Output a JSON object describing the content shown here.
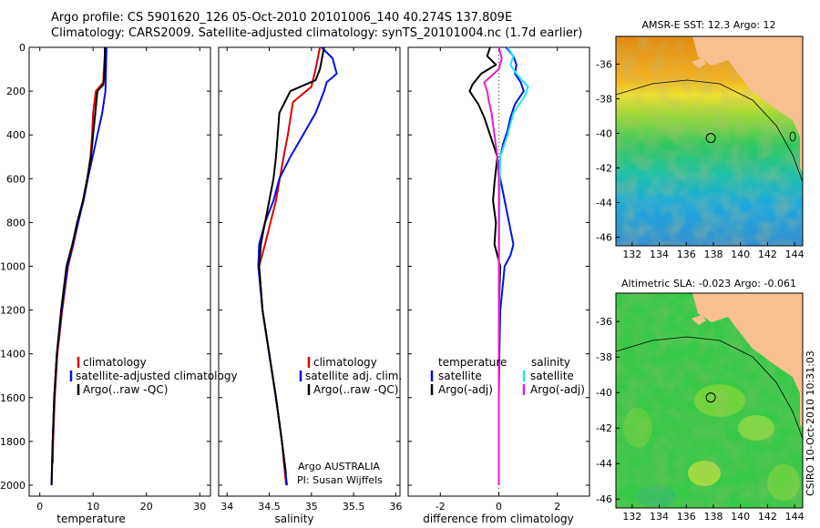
{
  "header": {
    "line1": "Argo profile: CS 5901620_126 05-Oct-2010 20101006_140 40.274S 137.809E",
    "line2": "Climatology: CARS2009. Satellite-adjusted climatology: synTS_20101004.nc (1.7d earlier)"
  },
  "colors": {
    "red": "#e00000",
    "blue": "#0010e8",
    "black": "#000000",
    "cyan": "#22e6ee",
    "magenta": "#e020d0",
    "land": "#f8c090"
  },
  "chart_data": [
    {
      "type": "line",
      "panel": "temperature",
      "xlabel": "temperature",
      "xlim": [
        -2,
        32
      ],
      "xticks": [
        0,
        10,
        20,
        30
      ],
      "ylim": [
        2050,
        0
      ],
      "yticks": [
        0,
        200,
        400,
        600,
        800,
        1000,
        1200,
        1400,
        1600,
        1800,
        2000
      ],
      "legend": [
        "climatology",
        "satellite-adjusted climatology",
        "Argo(..raw -QC)"
      ],
      "series": [
        {
          "name": "climatology",
          "color": "red",
          "depth": [
            0,
            100,
            160,
            200,
            300,
            400,
            500,
            600,
            700,
            800,
            900,
            1000,
            1200,
            1400,
            1600,
            1800,
            1900
          ],
          "values": [
            12.3,
            12.0,
            11.9,
            10.5,
            10.0,
            9.8,
            9.5,
            8.9,
            8.1,
            7.2,
            6.3,
            5.3,
            4.2,
            3.3,
            2.8,
            2.5,
            2.4
          ]
        },
        {
          "name": "satellite-adjusted climatology",
          "color": "blue",
          "depth": [
            0,
            100,
            200,
            300,
            400,
            500,
            600,
            700,
            800,
            900,
            1000,
            1200,
            1400,
            1600,
            1800,
            2000
          ],
          "values": [
            12.5,
            12.4,
            12.3,
            11.7,
            10.8,
            9.9,
            9.0,
            8.2,
            7.2,
            6.2,
            5.2,
            4.1,
            3.2,
            2.7,
            2.4,
            2.2
          ]
        },
        {
          "name": "Argo(..raw -QC)",
          "color": "black",
          "depth": [
            0,
            100,
            170,
            200,
            300,
            400,
            500,
            600,
            700,
            800,
            900,
            1000,
            1200,
            1400,
            1600,
            1800,
            2000
          ],
          "values": [
            12.2,
            12.2,
            11.9,
            10.8,
            10.4,
            10.0,
            9.6,
            8.9,
            8.1,
            7.0,
            6.1,
            5.0,
            4.0,
            3.2,
            2.7,
            2.4,
            2.2
          ]
        }
      ]
    },
    {
      "type": "line",
      "panel": "salinity",
      "xlabel": "salinity",
      "xlim": [
        33.9,
        36.05
      ],
      "xticks": [
        34,
        34.5,
        35,
        35.5,
        36
      ],
      "ylim": [
        2050,
        0
      ],
      "legend": [
        "climatology",
        "satellite adj. clim.",
        "Argo(..raw -QC)"
      ],
      "annotations": [
        "Argo AUSTRALIA",
        "PI: Susan Wijffels"
      ],
      "series": [
        {
          "name": "climatology",
          "color": "red",
          "depth": [
            0,
            100,
            180,
            250,
            400,
            500,
            700,
            900,
            1000,
            1200,
            1400,
            1600,
            1800,
            2000
          ],
          "values": [
            35.1,
            35.05,
            35.0,
            34.78,
            34.72,
            34.67,
            34.58,
            34.45,
            34.38,
            34.42,
            34.5,
            34.58,
            34.65,
            34.7
          ]
        },
        {
          "name": "satellite adj. clim.",
          "color": "blue",
          "depth": [
            0,
            50,
            120,
            160,
            200,
            300,
            400,
            500,
            600,
            700,
            800,
            900,
            1000,
            1200,
            1400,
            1600,
            1800,
            2000
          ],
          "values": [
            35.12,
            35.25,
            35.3,
            35.18,
            35.15,
            35.05,
            34.9,
            34.75,
            34.62,
            34.55,
            34.45,
            34.38,
            34.37,
            34.42,
            34.5,
            34.58,
            34.65,
            34.71
          ]
        },
        {
          "name": "Argo(..raw -QC)",
          "color": "black",
          "depth": [
            0,
            100,
            150,
            200,
            300,
            400,
            500,
            600,
            700,
            800,
            900,
            1000,
            1200,
            1400,
            1600,
            1800,
            1950
          ],
          "values": [
            35.15,
            35.1,
            35.05,
            34.75,
            34.62,
            34.6,
            34.58,
            34.55,
            34.5,
            34.45,
            34.4,
            34.38,
            34.42,
            34.5,
            34.58,
            34.65,
            34.7
          ]
        }
      ]
    },
    {
      "type": "line",
      "panel": "difference",
      "xlabel": "difference from climatology",
      "xlim": [
        -3.1,
        3.1
      ],
      "xticks": [
        -2,
        0,
        2
      ],
      "ylim": [
        2050,
        0
      ],
      "legend_left_title": "temperature",
      "legend_right_title": "salinity",
      "legend": [
        "satellite",
        "Argo(-adj)",
        "satellite",
        "Argo(-adj)"
      ],
      "series": [
        {
          "name": "satellite",
          "group": "temperature",
          "color": "blue",
          "depth": [
            0,
            40,
            80,
            120,
            160,
            200,
            260,
            320,
            380,
            440,
            500,
            560,
            600,
            700,
            800,
            900,
            950,
            1000,
            1200,
            1400,
            1600,
            1800,
            2000
          ],
          "values": [
            0.25,
            0.5,
            0.6,
            0.55,
            0.75,
            0.85,
            0.55,
            0.4,
            0.3,
            0.15,
            0.05,
            0.0,
            0.05,
            0.2,
            0.35,
            0.5,
            0.4,
            0.2,
            0.05,
            0.02,
            0.0,
            0.0,
            0.0
          ]
        },
        {
          "name": "Argo(-adj)",
          "group": "temperature",
          "color": "black",
          "depth": [
            0,
            40,
            80,
            120,
            170,
            200,
            260,
            320,
            380,
            440,
            500,
            560,
            620,
            700,
            800,
            900,
            1000,
            1200,
            1400,
            1600,
            1800,
            2000
          ],
          "values": [
            -0.3,
            -0.4,
            -0.1,
            -0.6,
            -0.9,
            -1.0,
            -0.7,
            -0.5,
            -0.35,
            -0.2,
            -0.05,
            -0.1,
            -0.15,
            -0.2,
            -0.1,
            -0.15,
            0.05,
            0.0,
            0.0,
            0.0,
            0.0,
            0.0
          ]
        },
        {
          "name": "satellite",
          "group": "salinity",
          "color": "cyan",
          "depth": [
            0,
            40,
            80,
            120,
            150,
            180,
            220,
            300,
            400,
            500,
            600,
            800,
            1000,
            1500,
            2000
          ],
          "values": [
            0.3,
            0.5,
            0.4,
            0.6,
            0.8,
            1.0,
            0.9,
            0.5,
            0.3,
            0.05,
            0.03,
            0.02,
            0.01,
            0.0,
            0.0
          ]
        },
        {
          "name": "Argo(-adj)",
          "group": "salinity",
          "color": "magenta",
          "depth": [
            0,
            50,
            100,
            160,
            200,
            240,
            300,
            400,
            500,
            600,
            800,
            1000,
            1500,
            2000
          ],
          "values": [
            0.0,
            0.1,
            0.0,
            -0.5,
            -0.4,
            -0.35,
            -0.25,
            -0.15,
            -0.05,
            0.0,
            0.0,
            0.0,
            0.0,
            0.0
          ]
        }
      ]
    },
    {
      "type": "heatmap",
      "panel": "sst-map",
      "title": "AMSR-E SST: 12.3 Argo: 12",
      "xticks": [
        132,
        134,
        136,
        138,
        140,
        142,
        144
      ],
      "yticks": [
        -36,
        -38,
        -40,
        -42,
        -44,
        -46
      ],
      "xlim": [
        130.8,
        144.6
      ],
      "ylim": [
        -46.5,
        -34.4
      ],
      "marker": {
        "lon": 137.809,
        "lat": -40.274
      }
    },
    {
      "type": "heatmap",
      "panel": "sla-map",
      "title": "Altimetric SLA: -0.023 Argo: -0.061",
      "side_label": "CSIRO 10-Oct-2010 10:31:03",
      "xticks": [
        132,
        134,
        136,
        138,
        140,
        142,
        144
      ],
      "yticks": [
        -36,
        -38,
        -40,
        -42,
        -44,
        -46
      ],
      "xlim": [
        130.8,
        144.6
      ],
      "ylim": [
        -46.5,
        -34.4
      ],
      "marker": {
        "lon": 137.809,
        "lat": -40.274
      }
    }
  ]
}
